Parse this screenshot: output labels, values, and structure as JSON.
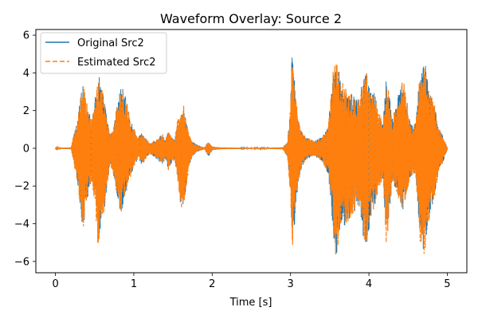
{
  "chart_data": {
    "type": "line",
    "title": "Waveform Overlay: Source 2",
    "xlabel": "Time [s]",
    "ylabel": "",
    "xlim": [
      -0.25,
      5.25
    ],
    "ylim": [
      -6.6,
      6.3
    ],
    "x_ticks": [
      0,
      1,
      2,
      3,
      4,
      5
    ],
    "x_tick_labels": [
      "0",
      "1",
      "2",
      "3",
      "4",
      "5"
    ],
    "y_ticks": [
      -6,
      -4,
      -2,
      0,
      2,
      4,
      6
    ],
    "y_tick_labels": [
      "−6",
      "−4",
      "−2",
      "0",
      "2",
      "4",
      "6"
    ],
    "grid": false,
    "legend_position": "upper-left",
    "series": [
      {
        "name": "Original Src2",
        "color": "#1f77b4",
        "style": "solid",
        "envelope": {
          "t": [
            0,
            0.2,
            0.22,
            0.28,
            0.32,
            0.35,
            0.38,
            0.42,
            0.46,
            0.5,
            0.55,
            0.58,
            0.62,
            0.66,
            0.7,
            0.75,
            0.8,
            0.84,
            0.88,
            0.93,
            0.98,
            1.05,
            1.1,
            1.2,
            1.3,
            1.36,
            1.4,
            1.44,
            1.48,
            1.52,
            1.56,
            1.6,
            1.64,
            1.66,
            1.7,
            1.74,
            1.8,
            1.9,
            1.95,
            2.0,
            2.1,
            2.4,
            2.7,
            2.9,
            2.96,
            3.0,
            3.02,
            3.06,
            3.1,
            3.14,
            3.2,
            3.3,
            3.4,
            3.48,
            3.52,
            3.56,
            3.6,
            3.65,
            3.7,
            3.76,
            3.82,
            3.88,
            3.92,
            3.96,
            4.0,
            4.03,
            4.07,
            4.1,
            4.14,
            4.18,
            4.22,
            4.26,
            4.3,
            4.35,
            4.4,
            4.44,
            4.48,
            4.52,
            4.56,
            4.6,
            4.64,
            4.68,
            4.72,
            4.76,
            4.8,
            4.84,
            4.88,
            4.92,
            4.96,
            5.0
          ],
          "upper": [
            0.02,
            0.05,
            0.5,
            1.5,
            2.8,
            3.6,
            2.9,
            2.2,
            1.5,
            2.5,
            3.9,
            3.6,
            2.8,
            1.5,
            0.7,
            1.3,
            2.8,
            3.4,
            2.9,
            2.2,
            1.3,
            0.6,
            0.8,
            0.3,
            0.5,
            0.8,
            0.5,
            1.0,
            0.6,
            0.5,
            1.6,
            1.8,
            2.3,
            1.7,
            0.9,
            0.4,
            0.2,
            0.05,
            0.35,
            0.1,
            0.05,
            0.03,
            0.03,
            0.06,
            0.35,
            2.3,
            5.5,
            3.0,
            1.5,
            0.9,
            0.6,
            0.4,
            0.6,
            1.2,
            3.0,
            5.6,
            4.4,
            3.6,
            3.2,
            3.0,
            2.8,
            2.6,
            3.7,
            4.2,
            3.7,
            3.0,
            3.1,
            2.3,
            1.8,
            1.4,
            3.9,
            2.8,
            1.6,
            2.3,
            3.3,
            3.8,
            2.8,
            1.6,
            1.2,
            1.4,
            3.6,
            4.4,
            5.0,
            3.4,
            2.8,
            2.4,
            1.2,
            0.9,
            0.5,
            0.05
          ],
          "lower": [
            -0.02,
            -0.05,
            -0.6,
            -1.8,
            -3.4,
            -4.8,
            -3.2,
            -2.4,
            -1.8,
            -3.0,
            -5.6,
            -4.2,
            -3.3,
            -1.9,
            -0.9,
            -1.6,
            -3.2,
            -3.4,
            -2.6,
            -1.9,
            -1.2,
            -0.6,
            -0.9,
            -0.3,
            -0.6,
            -0.9,
            -0.6,
            -1.2,
            -0.8,
            -0.6,
            -1.9,
            -3.2,
            -3.3,
            -2.4,
            -1.1,
            -0.5,
            -0.2,
            -0.05,
            -0.45,
            -0.1,
            -0.05,
            -0.03,
            -0.03,
            -0.06,
            -0.45,
            -2.8,
            -5.6,
            -3.5,
            -1.8,
            -1.0,
            -0.6,
            -0.4,
            -0.7,
            -1.5,
            -3.2,
            -5.8,
            -5.5,
            -4.5,
            -4.0,
            -3.8,
            -3.3,
            -3.1,
            -4.6,
            -5.4,
            -4.5,
            -3.5,
            -3.2,
            -2.6,
            -2.0,
            -1.6,
            -5.3,
            -3.6,
            -1.8,
            -2.4,
            -3.0,
            -3.3,
            -2.5,
            -1.6,
            -1.4,
            -1.6,
            -4.6,
            -5.9,
            -5.6,
            -4.1,
            -3.2,
            -2.7,
            -1.4,
            -1.0,
            -0.6,
            -0.05
          ]
        }
      },
      {
        "name": "Estimated Src2",
        "color": "#ff7f0e",
        "style": "dashed",
        "same_as": "Original Src2"
      }
    ]
  }
}
